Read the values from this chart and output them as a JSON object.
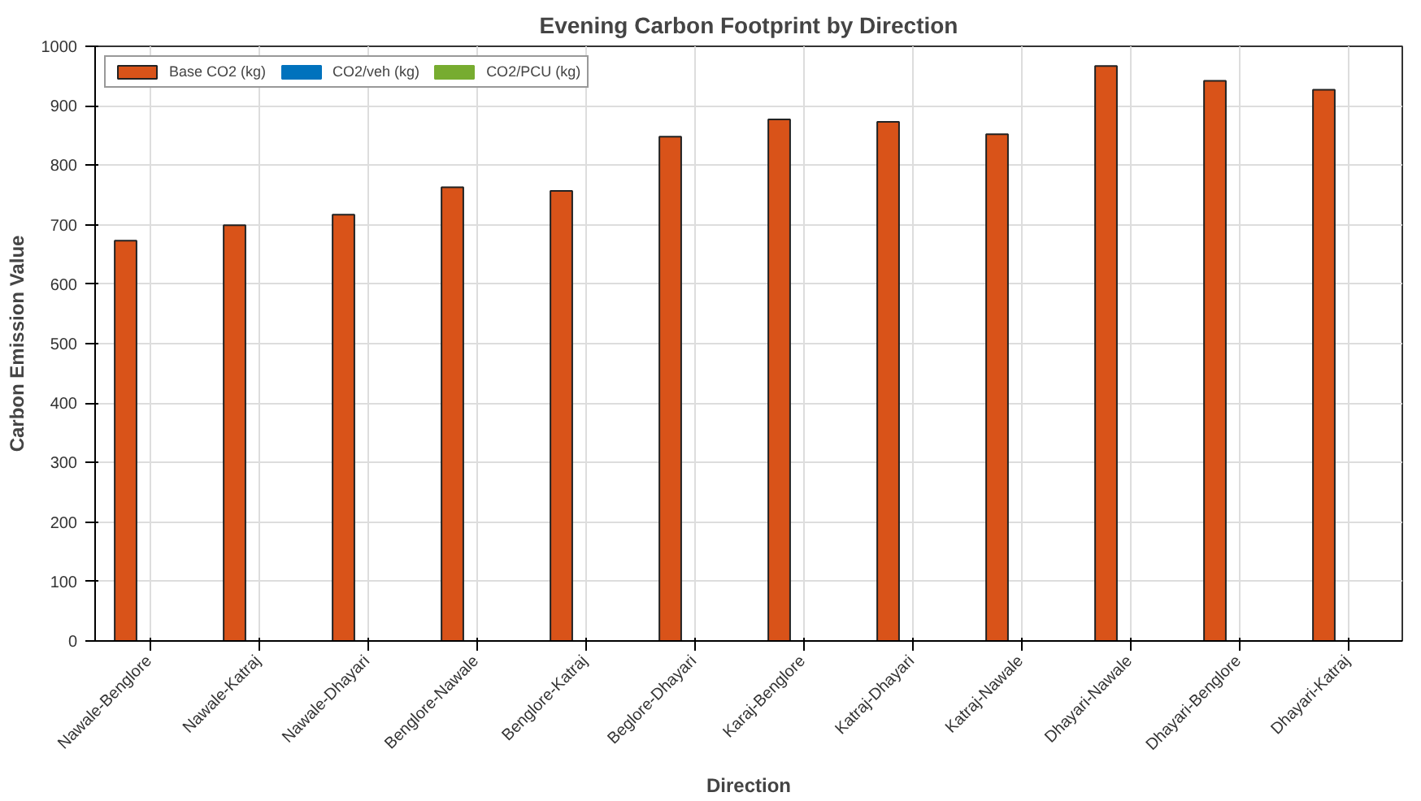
{
  "chart_data": {
    "type": "bar",
    "title": "Evening Carbon Footprint by Direction",
    "xlabel": "Direction",
    "ylabel": "Carbon Emission Value",
    "categories": [
      "Nawale-Benglore",
      "Nawale-Katraj",
      "Nawale-Dhayari",
      "Benglore-Nawale",
      "Benglore-Katraj",
      "Beglore-Dhayari",
      "Karaj-Benglore",
      "Katraj-Dhayari",
      "Katraj-Nawale",
      "Dhayari-Nawale",
      "Dhayari-Benglore",
      "Dhayari-Katraj"
    ],
    "series": [
      {
        "name": "Base CO2 (kg)",
        "color": "#d95319",
        "values": [
          673,
          699,
          717,
          763,
          757,
          848,
          877,
          873,
          852,
          967,
          942,
          927
        ]
      },
      {
        "name": "CO2/veh (kg)",
        "color": "#0072bd",
        "values": [
          0,
          0,
          0,
          0,
          0,
          0,
          0,
          0,
          0,
          0,
          0,
          0
        ]
      },
      {
        "name": "CO2/PCU (kg)",
        "color": "#77ac30",
        "values": [
          0,
          0,
          0,
          0,
          0,
          0,
          0,
          0,
          0,
          0,
          0,
          0
        ]
      }
    ],
    "ylim": [
      0,
      1000
    ],
    "yticks": [
      0,
      100,
      200,
      300,
      400,
      500,
      600,
      700,
      800,
      900,
      1000
    ],
    "grid": true,
    "legend": "top left"
  }
}
